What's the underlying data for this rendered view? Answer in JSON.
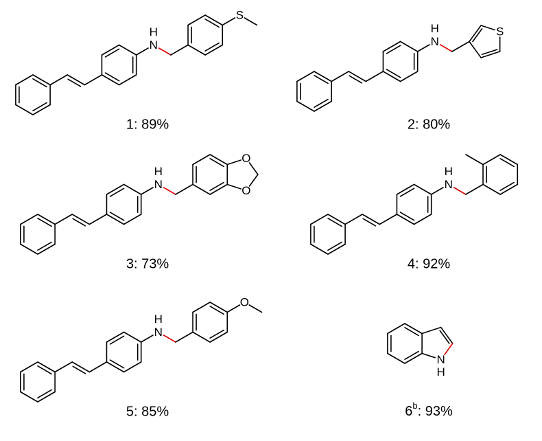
{
  "compounds": [
    {
      "caption": "1: 89%",
      "atoms": [
        "H",
        "N",
        "S"
      ]
    },
    {
      "caption": "2: 80%",
      "atoms": [
        "H",
        "N",
        "S"
      ]
    },
    {
      "caption": "3: 73%",
      "atoms": [
        "H",
        "N",
        "O",
        "O"
      ]
    },
    {
      "caption": "4: 92%",
      "atoms": [
        "H",
        "N"
      ]
    },
    {
      "caption": "5: 85%",
      "atoms": [
        "H",
        "N",
        "O"
      ]
    },
    {
      "caption_parts": [
        "6",
        "b",
        ": 93%"
      ],
      "atoms": [
        "N",
        "H"
      ]
    }
  ]
}
